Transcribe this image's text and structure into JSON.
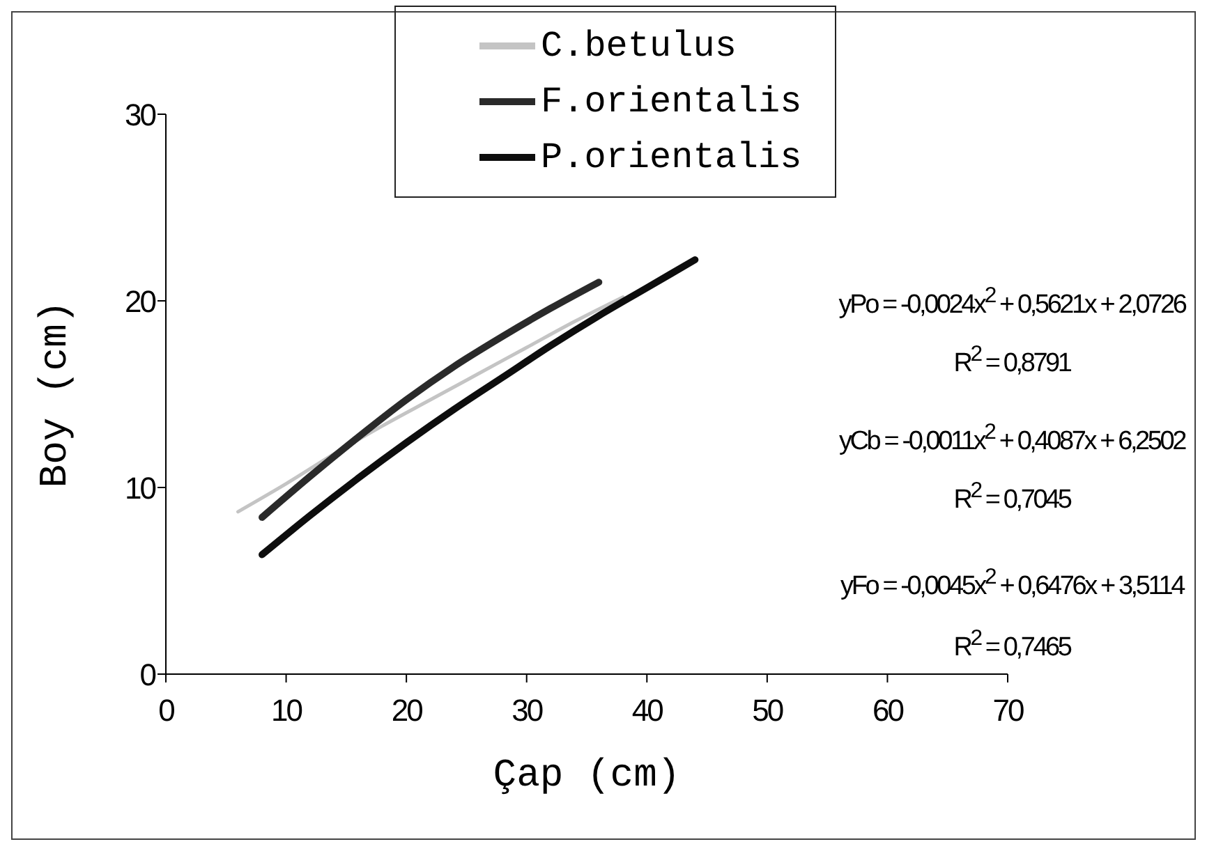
{
  "chart_data": {
    "type": "line",
    "xlabel": "Çap (cm)",
    "ylabel": "Boy (cm)",
    "xlim": [
      0,
      70
    ],
    "xticks": [
      0,
      10,
      20,
      30,
      40,
      50,
      60,
      70
    ],
    "ylim": [
      0,
      30
    ],
    "yticks": [
      0,
      10,
      20,
      30
    ],
    "grid": false,
    "legend": "top",
    "marker": "none",
    "line_style": "solid",
    "series": [
      {
        "name": "C.betulus",
        "color": "#c4c4c4",
        "x": [
          6,
          10,
          14,
          18,
          22,
          26,
          30,
          34,
          38
        ],
        "values": [
          8.7,
          10.2,
          11.8,
          13.3,
          14.7,
          16.1,
          17.5,
          18.9,
          20.2
        ]
      },
      {
        "name": "F.orientalis",
        "color": "#2a2a2a",
        "x": [
          8,
          12,
          16,
          20,
          24,
          28,
          32,
          36
        ],
        "values": [
          8.4,
          10.6,
          12.7,
          14.7,
          16.5,
          18.1,
          19.6,
          21.0
        ]
      },
      {
        "name": "P.orientalis",
        "color": "#0d0d0d",
        "x": [
          8,
          12,
          16,
          20,
          24,
          28,
          32,
          36,
          40,
          44
        ],
        "values": [
          6.4,
          8.5,
          10.5,
          12.4,
          14.2,
          15.9,
          17.6,
          19.2,
          20.7,
          22.2
        ]
      }
    ],
    "annotations": [
      "yPo = -0,0024x$^{2}$ + 0,5621x + 2,0726",
      "R$^{2}$ = 0,8791",
      "yCb = -0,0011x$^{2}$ + 0,4087x + 6,2502",
      "R$^{2}$ = 0,7045",
      "yFo = -0,0045x$^{2}$ + 0,6476x + 3,5114",
      "R$^{2}$ = 0,7465"
    ]
  }
}
